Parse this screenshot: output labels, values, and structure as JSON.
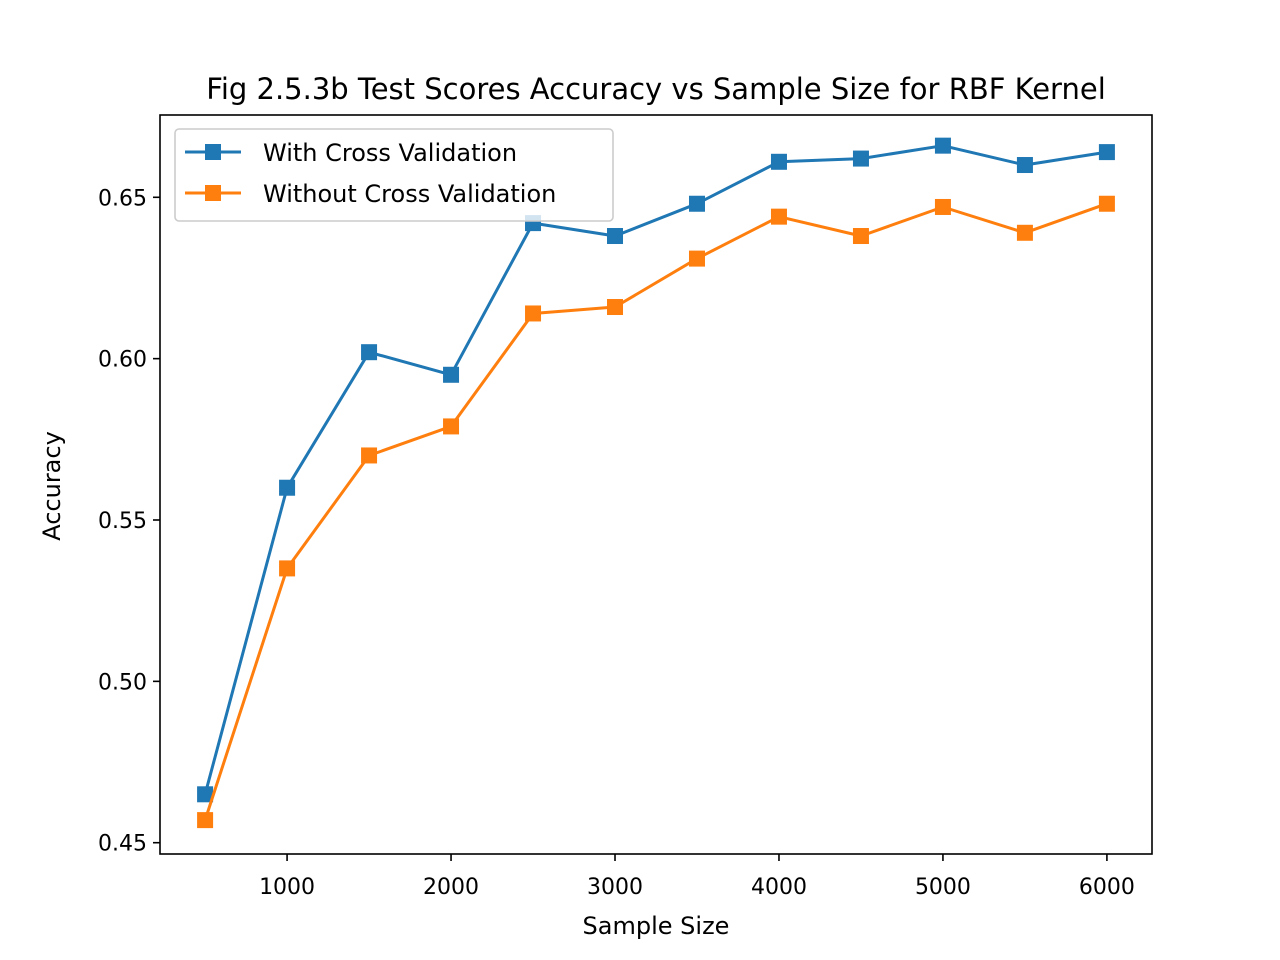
{
  "chart_data": {
    "type": "line",
    "title": "Fig 2.5.3b Test Scores Accuracy vs Sample Size for RBF Kernel",
    "xlabel": "Sample Size",
    "ylabel": "Accuracy",
    "xlim": [
      225,
      6275
    ],
    "ylim": [
      0.4465,
      0.6755
    ],
    "xticks": [
      1000,
      2000,
      3000,
      4000,
      5000,
      6000
    ],
    "xtick_labels": [
      "1000",
      "2000",
      "3000",
      "4000",
      "5000",
      "6000"
    ],
    "yticks": [
      0.45,
      0.5,
      0.55,
      0.6,
      0.65
    ],
    "ytick_labels": [
      "0.45",
      "0.50",
      "0.55",
      "0.60",
      "0.65"
    ],
    "x": [
      500,
      1000,
      1500,
      2000,
      2500,
      3000,
      3500,
      4000,
      4500,
      5000,
      5500,
      6000
    ],
    "series": [
      {
        "name": "With Cross Validation",
        "color": "#1f77b4",
        "marker": "square",
        "values": [
          0.465,
          0.56,
          0.602,
          0.595,
          0.642,
          0.638,
          0.648,
          0.661,
          0.662,
          0.666,
          0.66,
          0.664
        ]
      },
      {
        "name": "Without Cross Validation",
        "color": "#ff7f0e",
        "marker": "square",
        "values": [
          0.457,
          0.535,
          0.57,
          0.579,
          0.614,
          0.616,
          0.631,
          0.644,
          0.638,
          0.647,
          0.639,
          0.648
        ]
      }
    ],
    "legend_position": "upper-left",
    "grid": false
  }
}
